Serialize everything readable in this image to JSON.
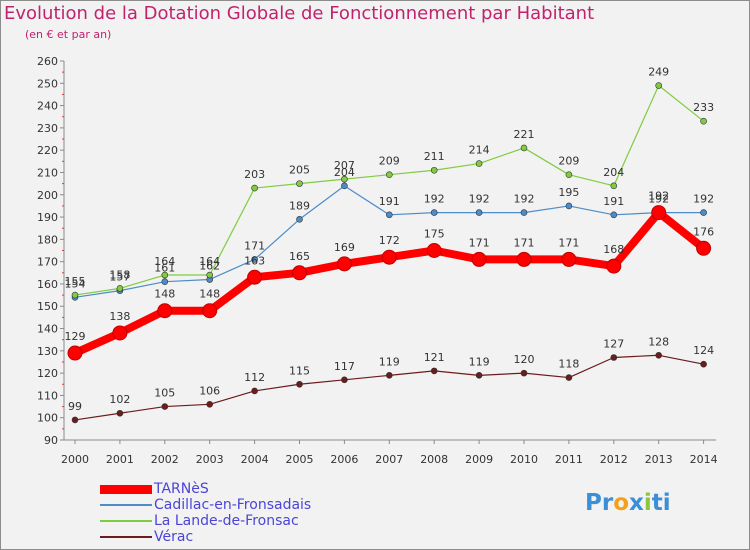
{
  "header": {
    "title": "Evolution de la Dotation Globale de Fonctionnement par Habitant",
    "subtitle": "(en € et par an)"
  },
  "logo": {
    "parts": [
      "Pr",
      "o",
      "x",
      "i",
      "ti"
    ],
    "colors": [
      "#3b8fd6",
      "#f3a11b",
      "#3b8fd6",
      "#8cc63f",
      "#3b8fd6"
    ]
  },
  "chart_data": {
    "type": "line",
    "title": "Evolution de la Dotation Globale de Fonctionnement par Habitant",
    "subtitle": "(en € et par an)",
    "x": [
      "2000",
      "2001",
      "2002",
      "2003",
      "2004",
      "2005",
      "2006",
      "2007",
      "2008",
      "2009",
      "2010",
      "2011",
      "2012",
      "2013",
      "2014"
    ],
    "ylim": [
      90,
      260
    ],
    "yticks": [
      90,
      100,
      110,
      120,
      130,
      140,
      150,
      160,
      170,
      180,
      190,
      200,
      210,
      220,
      230,
      240,
      250,
      260
    ],
    "grid": false,
    "series": [
      {
        "name": "TARNèS",
        "color": "#ff0000",
        "emphasis": true,
        "values": [
          129,
          138,
          148,
          148,
          163,
          165,
          169,
          172,
          175,
          171,
          171,
          171,
          168,
          192,
          176
        ]
      },
      {
        "name": "Cadillac-en-Fronsadais",
        "color": "#4d8cc8",
        "emphasis": false,
        "values": [
          154,
          157,
          161,
          162,
          171,
          189,
          204,
          191,
          192,
          192,
          192,
          195,
          191,
          192,
          192
        ]
      },
      {
        "name": "La Lande-de-Fronsac",
        "color": "#80cc40",
        "emphasis": false,
        "values": [
          155,
          158,
          164,
          164,
          203,
          205,
          207,
          209,
          211,
          214,
          221,
          209,
          204,
          249,
          233
        ]
      },
      {
        "name": "Vérac",
        "color": "#6b1c1c",
        "emphasis": false,
        "values": [
          99,
          102,
          105,
          106,
          112,
          115,
          117,
          119,
          121,
          119,
          120,
          118,
          127,
          128,
          124
        ]
      }
    ]
  }
}
